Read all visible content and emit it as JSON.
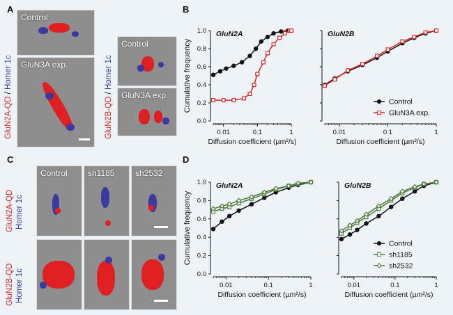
{
  "panels": {
    "A": "A",
    "B": "B",
    "C": "C",
    "D": "D"
  },
  "panel_a": {
    "label_red": "GluN2A-QD",
    "label_sep": " / ",
    "label_blue": "Homer 1c",
    "label2_red": "GluN2B-QD",
    "label2_blue": "Homer 1c",
    "tiles": [
      "Control",
      "GluN3A exp.",
      "Control",
      "GluN3A exp."
    ]
  },
  "panel_c": {
    "columns": [
      "Control",
      "sh1185",
      "sh2532"
    ],
    "row1_red": "GluN2A-QD",
    "row1_blue": "Homer 1c",
    "row2_red": "GluN2B-QD",
    "row2_blue": "Homer 1c"
  },
  "chart_data": [
    {
      "type": "line",
      "panel": "B",
      "subtitle": "GluN2A",
      "ylabel": "Cumulative frequency",
      "xlabel": "Diffusion coefficient (µm²/s)",
      "xscale": "log",
      "xlim": [
        0.005,
        1
      ],
      "ylim": [
        0,
        1
      ],
      "xticks": [
        "0.01",
        "0.1",
        "1"
      ],
      "yticks": [
        "0.0",
        "0.2",
        "0.4",
        "0.6",
        "0.8",
        "1.0"
      ],
      "series": [
        {
          "name": "Control",
          "color": "#111111",
          "x": [
            0.005,
            0.008,
            0.012,
            0.02,
            0.035,
            0.06,
            0.09,
            0.13,
            0.2,
            0.3,
            0.5,
            0.8,
            1.0
          ],
          "y": [
            0.51,
            0.55,
            0.58,
            0.61,
            0.65,
            0.72,
            0.8,
            0.88,
            0.93,
            0.97,
            0.99,
            1.0,
            1.0
          ]
        },
        {
          "name": "GluN3A exp.",
          "color": "#d62828",
          "x": [
            0.005,
            0.01,
            0.02,
            0.04,
            0.06,
            0.08,
            0.1,
            0.15,
            0.2,
            0.3,
            0.45,
            0.65,
            0.9,
            1.0
          ],
          "y": [
            0.23,
            0.23,
            0.23,
            0.25,
            0.3,
            0.4,
            0.52,
            0.65,
            0.75,
            0.85,
            0.92,
            0.97,
            1.0,
            1.0
          ]
        }
      ]
    },
    {
      "type": "line",
      "panel": "B",
      "subtitle": "GluN2B",
      "xlabel": "Diffusion coefficient (µm²/s)",
      "xscale": "log",
      "xlim": [
        0.005,
        1
      ],
      "ylim": [
        0,
        1
      ],
      "xticks": [
        "0.01",
        "0.1",
        "1"
      ],
      "legend": "bottom-right",
      "series": [
        {
          "name": "Control",
          "color": "#111111",
          "x": [
            0.005,
            0.008,
            0.015,
            0.03,
            0.06,
            0.1,
            0.2,
            0.35,
            0.6,
            1.0
          ],
          "y": [
            0.4,
            0.47,
            0.55,
            0.62,
            0.7,
            0.77,
            0.86,
            0.92,
            0.97,
            1.0
          ]
        },
        {
          "name": "GluN3A exp.",
          "color": "#d62828",
          "x": [
            0.005,
            0.008,
            0.015,
            0.03,
            0.06,
            0.1,
            0.2,
            0.35,
            0.6,
            1.0
          ],
          "y": [
            0.39,
            0.46,
            0.56,
            0.63,
            0.72,
            0.79,
            0.88,
            0.93,
            0.98,
            1.0
          ]
        }
      ]
    },
    {
      "type": "line",
      "panel": "D",
      "subtitle": "GluN2A",
      "ylabel": "Cumulative frequency",
      "xlabel": "Diffusion coefficient (µm²/s)",
      "xscale": "log",
      "xlim": [
        0.005,
        1
      ],
      "ylim": [
        0,
        1
      ],
      "xticks": [
        "0.01",
        "0.1",
        "1"
      ],
      "yticks": [
        "0.0",
        "0.2",
        "0.4",
        "0.6",
        "0.8",
        "1.0"
      ],
      "series": [
        {
          "name": "Control",
          "color": "#111111",
          "x": [
            0.005,
            0.008,
            0.012,
            0.02,
            0.04,
            0.08,
            0.15,
            0.3,
            0.5,
            1.0
          ],
          "y": [
            0.49,
            0.57,
            0.63,
            0.69,
            0.76,
            0.83,
            0.89,
            0.94,
            0.97,
            1.0
          ]
        },
        {
          "name": "sh1185",
          "color": "#4e7a3a",
          "x": [
            0.005,
            0.008,
            0.012,
            0.02,
            0.04,
            0.08,
            0.15,
            0.3,
            0.5,
            1.0
          ],
          "y": [
            0.68,
            0.71,
            0.73,
            0.77,
            0.82,
            0.87,
            0.92,
            0.96,
            0.98,
            1.0
          ]
        },
        {
          "name": "sh2532",
          "color": "#4e7a3a",
          "x": [
            0.005,
            0.008,
            0.012,
            0.02,
            0.04,
            0.08,
            0.15,
            0.3,
            0.5,
            1.0
          ],
          "y": [
            0.71,
            0.74,
            0.76,
            0.8,
            0.84,
            0.89,
            0.93,
            0.96,
            0.99,
            1.0
          ]
        }
      ]
    },
    {
      "type": "line",
      "panel": "D",
      "subtitle": "GluN2B",
      "xlabel": "Diffusion coefficient (µm²/s)",
      "xscale": "log",
      "xlim": [
        0.005,
        1
      ],
      "ylim": [
        0,
        1
      ],
      "xticks": [
        "0.01",
        "0.1",
        "1"
      ],
      "legend": "bottom-right",
      "series": [
        {
          "name": "Control",
          "color": "#111111",
          "x": [
            0.005,
            0.008,
            0.012,
            0.02,
            0.04,
            0.08,
            0.15,
            0.3,
            0.5,
            1.0
          ],
          "y": [
            0.38,
            0.43,
            0.48,
            0.55,
            0.63,
            0.73,
            0.82,
            0.9,
            0.96,
            1.0
          ]
        },
        {
          "name": "sh1185",
          "color": "#4e7a3a",
          "x": [
            0.005,
            0.008,
            0.012,
            0.02,
            0.04,
            0.08,
            0.15,
            0.3,
            0.5,
            1.0
          ],
          "y": [
            0.44,
            0.5,
            0.56,
            0.62,
            0.71,
            0.8,
            0.88,
            0.94,
            0.98,
            1.0
          ]
        },
        {
          "name": "sh2532",
          "color": "#4e7a3a",
          "x": [
            0.005,
            0.008,
            0.012,
            0.02,
            0.04,
            0.08,
            0.15,
            0.3,
            0.5,
            1.0
          ],
          "y": [
            0.47,
            0.53,
            0.58,
            0.65,
            0.74,
            0.82,
            0.9,
            0.95,
            0.98,
            1.0
          ]
        }
      ]
    }
  ]
}
